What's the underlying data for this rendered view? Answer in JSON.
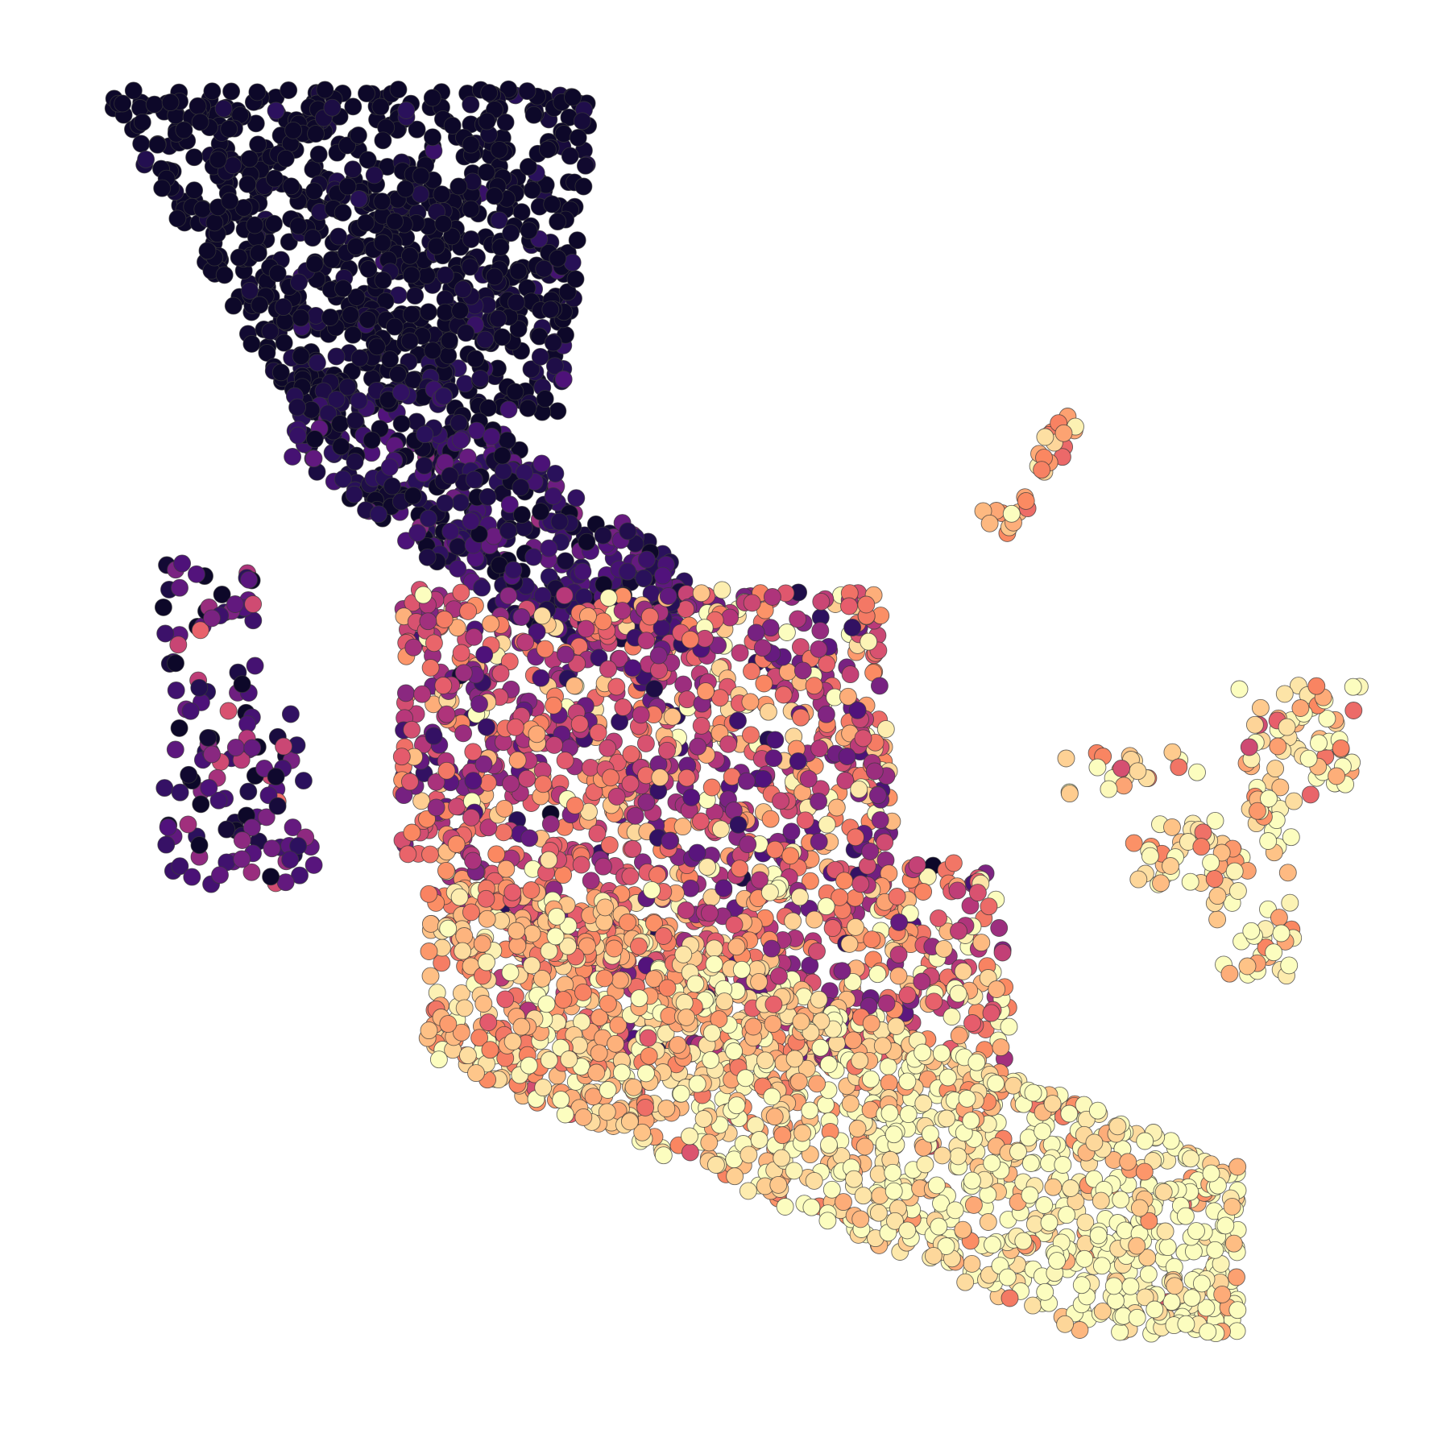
{
  "chart_data": {
    "type": "scatter",
    "title": "",
    "xlabel": "",
    "ylabel": "",
    "axes": "off",
    "grid": false,
    "legend": "none",
    "colormap": {
      "name": "magma",
      "stops": [
        "#0d0829",
        "#2a115c",
        "#51127c",
        "#7e2482",
        "#b5367a",
        "#e55c6c",
        "#fb8861",
        "#fec488",
        "#fcfdbf"
      ]
    },
    "xlim": [
      0,
      100
    ],
    "ylim": [
      0,
      100
    ],
    "clusters": [
      {
        "id": "top-left",
        "x": [
          4,
          42
        ],
        "y": [
          73,
          97
        ],
        "n": 900,
        "value_mean": 0.1,
        "value_spread": 0.08
      },
      {
        "id": "upper-diagonal",
        "x": [
          18,
          47
        ],
        "y": [
          56,
          75
        ],
        "n": 480,
        "value_mean": 0.2,
        "value_spread": 0.12
      },
      {
        "id": "left-island",
        "x": [
          8,
          20
        ],
        "y": [
          38,
          62
        ],
        "n": 140,
        "value_mean": 0.3,
        "value_spread": 0.22
      },
      {
        "id": "center-mixed",
        "x": [
          26,
          72
        ],
        "y": [
          25,
          60
        ],
        "n": 1500,
        "value_mean": 0.62,
        "value_spread": 0.22
      },
      {
        "id": "lower-right-band",
        "x": [
          28,
          88
        ],
        "y": [
          5,
          38
        ],
        "n": 1500,
        "value_mean": 0.85,
        "value_spread": 0.12
      },
      {
        "id": "right-islands",
        "x": [
          73,
          97
        ],
        "y": [
          31,
          53
        ],
        "n": 180,
        "value_mean": 0.8,
        "value_spread": 0.14
      },
      {
        "id": "top-spur",
        "x": [
          69,
          76
        ],
        "y": [
          64,
          73
        ],
        "n": 30,
        "value_mean": 0.8,
        "value_spread": 0.1
      }
    ]
  }
}
